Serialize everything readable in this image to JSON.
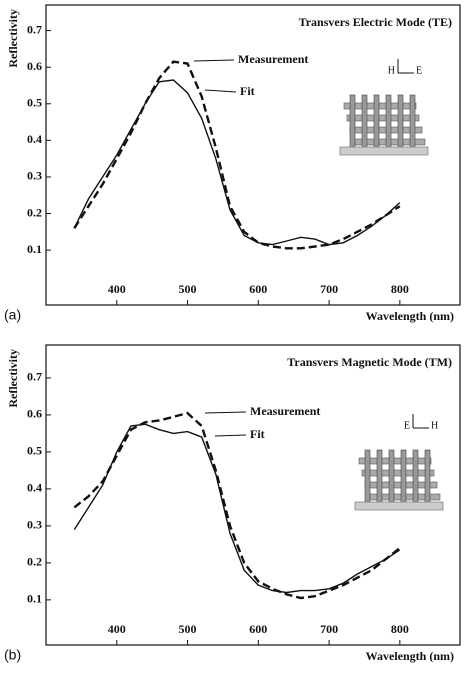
{
  "chart_data": [
    {
      "type": "line",
      "label": "(a)",
      "title": "Transvers Electric Mode (TE)",
      "x_label": "Wavelength (nm)",
      "y_label": "Reflectivity",
      "inset_labels": [
        "H",
        "E"
      ],
      "x": [
        340,
        360,
        380,
        400,
        420,
        440,
        460,
        480,
        500,
        520,
        540,
        560,
        580,
        600,
        620,
        640,
        660,
        680,
        700,
        720,
        740,
        760,
        780,
        800
      ],
      "series": [
        {
          "name": "Measurement",
          "color": "#111111",
          "style": "dashed",
          "values": [
            0.16,
            0.22,
            0.28,
            0.35,
            0.42,
            0.5,
            0.57,
            0.615,
            0.61,
            0.52,
            0.38,
            0.22,
            0.15,
            0.12,
            0.11,
            0.105,
            0.105,
            0.11,
            0.115,
            0.13,
            0.15,
            0.17,
            0.195,
            0.22
          ]
        },
        {
          "name": "Fit",
          "color": "#111111",
          "style": "solid",
          "values": [
            0.16,
            0.24,
            0.3,
            0.36,
            0.43,
            0.5,
            0.56,
            0.565,
            0.53,
            0.46,
            0.35,
            0.21,
            0.14,
            0.12,
            0.115,
            0.125,
            0.135,
            0.13,
            0.115,
            0.12,
            0.14,
            0.165,
            0.195,
            0.23
          ]
        }
      ],
      "xlim": [
        300,
        885
      ],
      "ylim": [
        -0.05,
        0.77
      ],
      "xticks": [
        400,
        500,
        600,
        700,
        800
      ],
      "yticks": [
        0.1,
        0.2,
        0.3,
        0.4,
        0.5,
        0.6,
        0.7
      ]
    },
    {
      "type": "line",
      "label": "(b)",
      "title": "Transvers Magnetic Mode (TM)",
      "x_label": "Wavelength (nm)",
      "y_label": "Reflectivity",
      "inset_labels": [
        "E",
        "H"
      ],
      "x": [
        340,
        360,
        380,
        400,
        420,
        440,
        460,
        480,
        500,
        520,
        540,
        560,
        580,
        600,
        620,
        640,
        660,
        680,
        700,
        720,
        740,
        760,
        780,
        800
      ],
      "series": [
        {
          "name": "Measurement",
          "color": "#111111",
          "style": "dashed",
          "values": [
            0.35,
            0.38,
            0.42,
            0.49,
            0.56,
            0.58,
            0.585,
            0.595,
            0.605,
            0.57,
            0.45,
            0.3,
            0.2,
            0.15,
            0.13,
            0.115,
            0.105,
            0.11,
            0.125,
            0.14,
            0.16,
            0.18,
            0.21,
            0.24
          ]
        },
        {
          "name": "Fit",
          "color": "#111111",
          "style": "solid",
          "values": [
            0.29,
            0.35,
            0.41,
            0.5,
            0.57,
            0.575,
            0.56,
            0.55,
            0.555,
            0.54,
            0.44,
            0.28,
            0.18,
            0.14,
            0.125,
            0.12,
            0.125,
            0.125,
            0.13,
            0.145,
            0.17,
            0.19,
            0.21,
            0.235
          ]
        }
      ],
      "xlim": [
        300,
        885
      ],
      "ylim": [
        -0.022,
        0.789
      ],
      "xticks": [
        400,
        500,
        600,
        700,
        800
      ],
      "yticks": [
        0.1,
        0.2,
        0.3,
        0.4,
        0.5,
        0.6,
        0.7
      ]
    }
  ]
}
